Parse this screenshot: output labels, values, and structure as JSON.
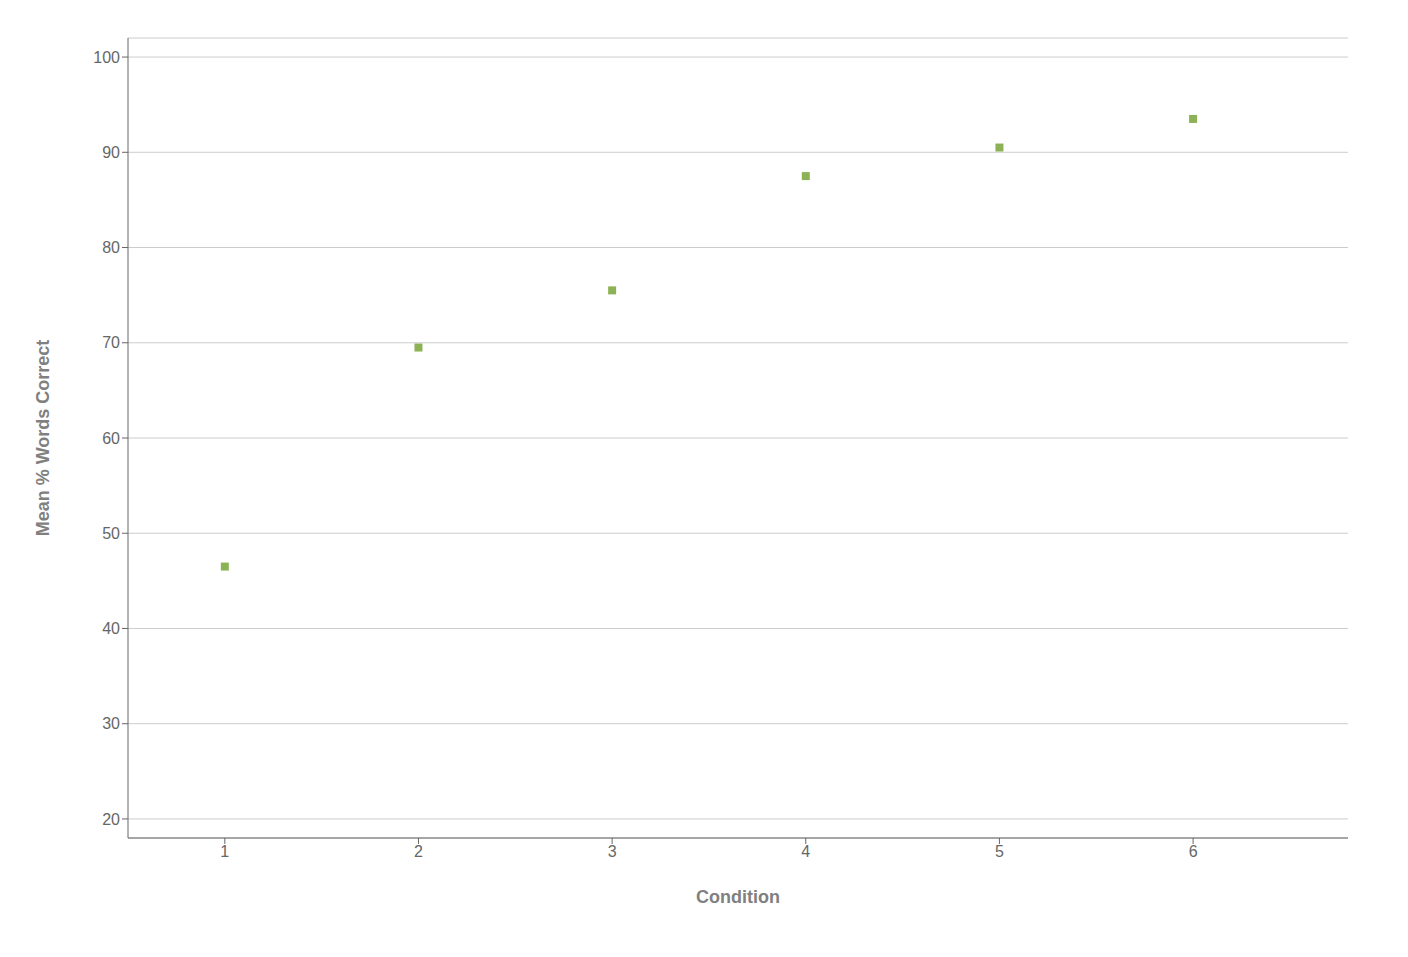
{
  "chart_data": {
    "type": "scatter",
    "x": [
      1,
      2,
      3,
      4,
      5,
      6
    ],
    "values": [
      46.5,
      69.5,
      75.5,
      87.5,
      90.5,
      93.5
    ],
    "xlabel": "Condition",
    "ylabel": "Mean % Words Correct",
    "xlim": [
      0.5,
      6.8
    ],
    "ylim": [
      18,
      102
    ],
    "xticks": [
      1,
      2,
      3,
      4,
      5,
      6
    ],
    "yticks": [
      20,
      30,
      40,
      50,
      60,
      70,
      80,
      90,
      100
    ],
    "color": "#8DB255",
    "marker": "square",
    "grid": "y"
  }
}
